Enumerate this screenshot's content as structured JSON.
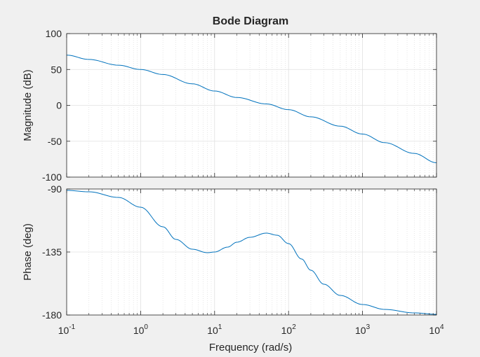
{
  "chart_data": {
    "type": "line",
    "title": "Bode Diagram",
    "xlabel": "Frequency  (rad/s)",
    "xscale": "log",
    "xlim": [
      0.1,
      10000
    ],
    "x_ticks": [
      {
        "value": 0.1,
        "base": "10",
        "exp": "-1"
      },
      {
        "value": 1,
        "base": "10",
        "exp": "0"
      },
      {
        "value": 10,
        "base": "10",
        "exp": "1"
      },
      {
        "value": 100,
        "base": "10",
        "exp": "2"
      },
      {
        "value": 1000,
        "base": "10",
        "exp": "3"
      },
      {
        "value": 10000,
        "base": "10",
        "exp": "4"
      }
    ],
    "grid": true,
    "line_color": "#0072bd",
    "panels": [
      {
        "name": "magnitude",
        "ylabel": "Magnitude (dB)",
        "ylim": [
          -100,
          100
        ],
        "yticks": [
          "100",
          "50",
          "0",
          "-50",
          "-100"
        ],
        "ytick_values": [
          100,
          50,
          0,
          -50,
          -100
        ],
        "x": [
          0.1,
          0.2,
          0.5,
          1,
          2,
          5,
          10,
          20,
          50,
          100,
          200,
          500,
          1000,
          2000,
          5000,
          10000
        ],
        "y": [
          70,
          64,
          56,
          50,
          43,
          30,
          20,
          11,
          2,
          -6,
          -16,
          -29,
          -40,
          -52,
          -67,
          -80
        ]
      },
      {
        "name": "phase",
        "ylabel": "Phase (deg)",
        "ylim": [
          -180,
          -90
        ],
        "yticks": [
          "-90",
          "-135",
          "-180"
        ],
        "ytick_values": [
          -90,
          -135,
          -180
        ],
        "x": [
          0.1,
          0.2,
          0.5,
          1,
          2,
          3,
          5,
          8,
          10,
          15,
          20,
          30,
          50,
          70,
          100,
          150,
          200,
          300,
          500,
          1000,
          2000,
          5000,
          10000
        ],
        "y": [
          -91,
          -92,
          -96,
          -103,
          -117,
          -126,
          -133,
          -135.5,
          -135,
          -131.5,
          -128,
          -124.5,
          -121.5,
          -123,
          -129,
          -140,
          -148,
          -158,
          -166,
          -172.5,
          -176,
          -178.5,
          -179.5
        ]
      }
    ]
  }
}
